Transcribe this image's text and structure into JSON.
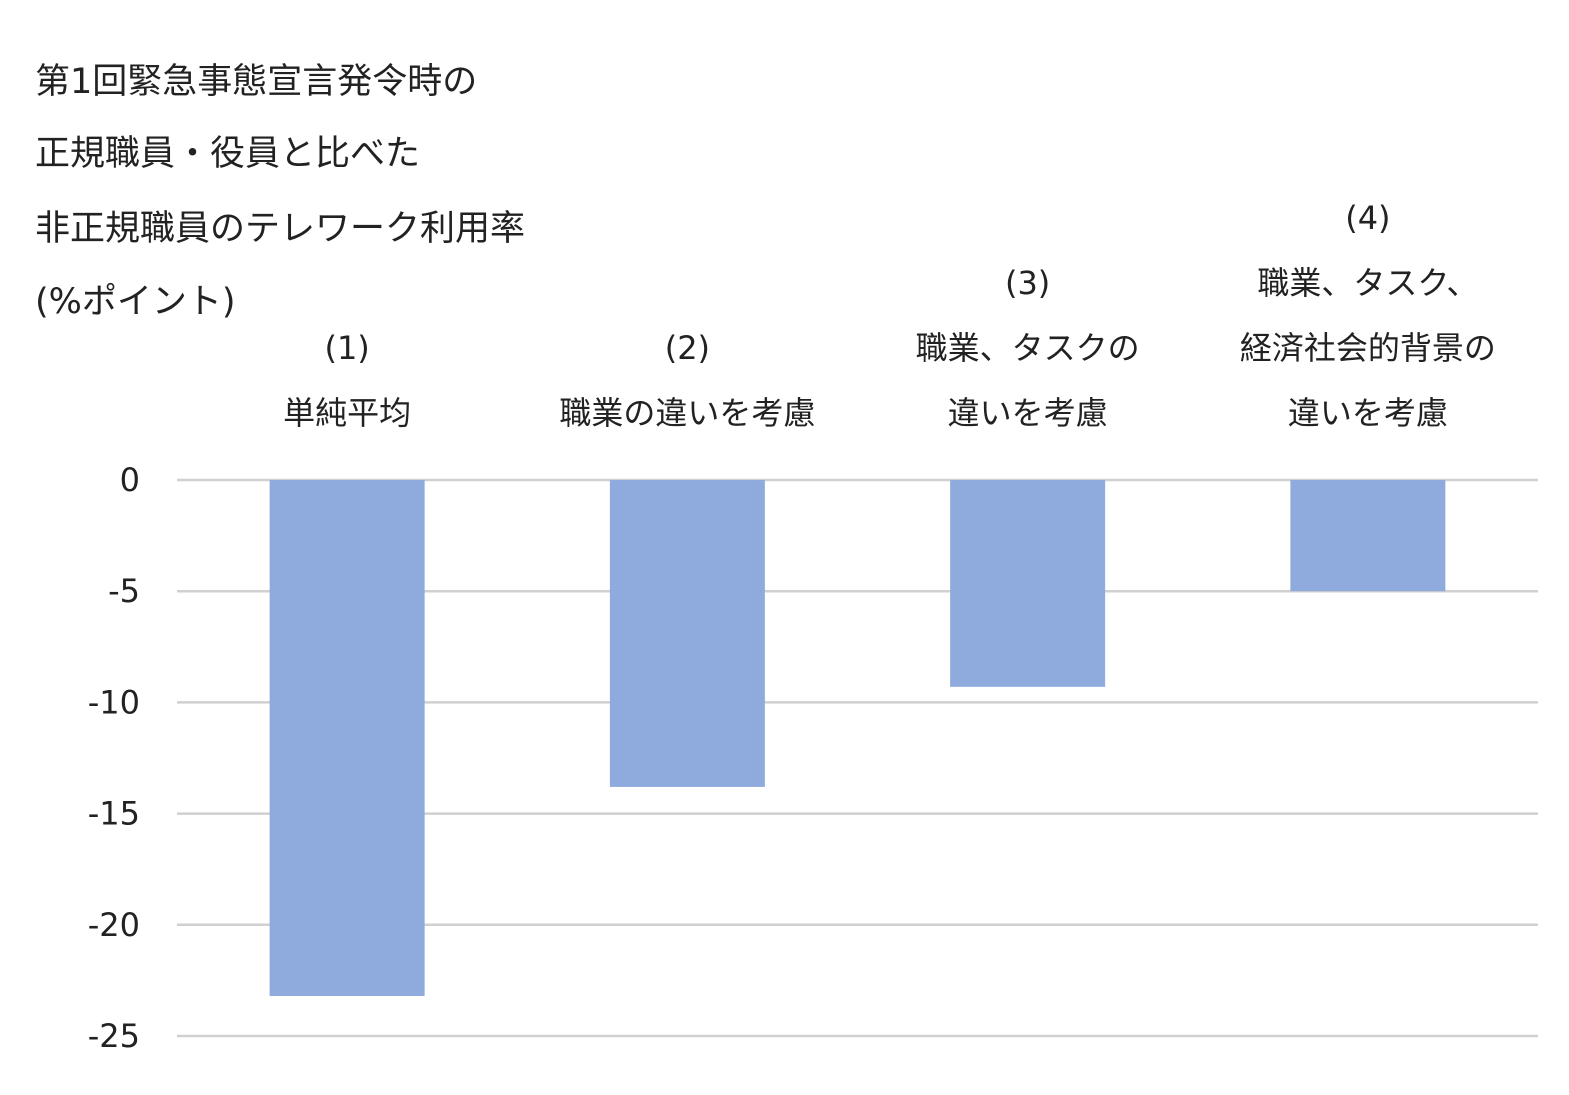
{
  "chart_data": {
    "type": "bar",
    "title": [
      "第1回緊急事態宣言発令時の",
      "正規職員・役員と比べた",
      "非正規職員のテレワーク利用率",
      "(%ポイント)"
    ],
    "categories": [
      [
        "(1)",
        "単純平均"
      ],
      [
        "(2)",
        "職業の違いを考慮"
      ],
      [
        "(3)",
        "職業、タスクの",
        "違いを考慮"
      ],
      [
        "(4)",
        "職業、タスク、",
        "経済社会的背景の",
        "違いを考慮"
      ]
    ],
    "values": [
      -23.2,
      -13.8,
      -9.3,
      -5.0
    ],
    "ylim": [
      -25,
      0
    ],
    "yticks": [
      0,
      -5,
      -10,
      -15,
      -20,
      -25
    ],
    "ytick_labels": [
      "0",
      "-5",
      "-10",
      "-15",
      "-20",
      "-25"
    ],
    "xlabel": "",
    "ylabel": "",
    "grid": true,
    "legend": "none",
    "bar_color": "#8faadc",
    "grid_color": "#d0d0d0"
  }
}
